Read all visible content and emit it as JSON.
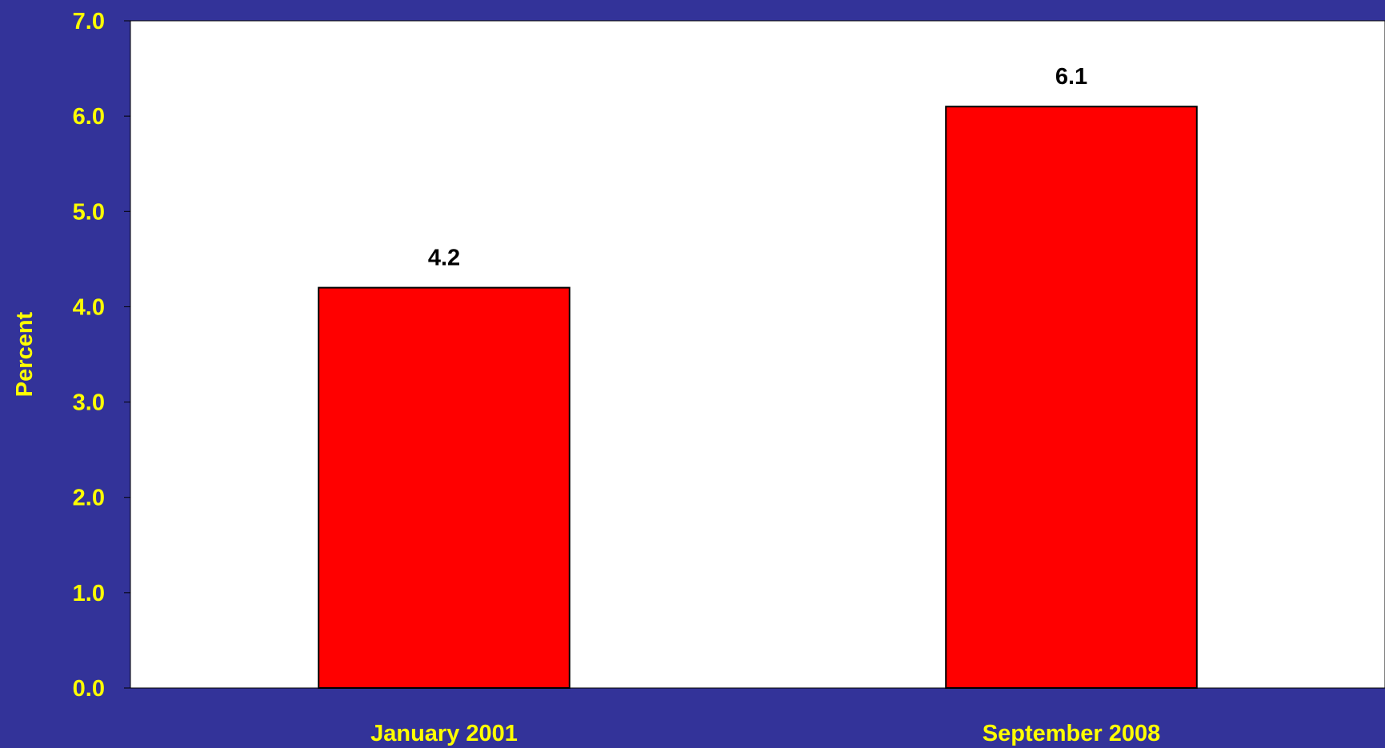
{
  "colors": {
    "background": "#333399",
    "plot_area": "#FFFFFF",
    "bar_fill": "#FF0000",
    "bar_stroke": "#000000",
    "axis_text": "#FFFF00",
    "data_label_text": "#000000"
  },
  "chart_data": {
    "type": "bar",
    "categories": [
      "January 2001",
      "September 2008"
    ],
    "values": [
      4.2,
      6.1
    ],
    "value_labels": [
      "4.2",
      "6.1"
    ],
    "title": "",
    "xlabel": "",
    "ylabel": "Percent",
    "ylim": [
      0,
      7
    ],
    "yticks": [
      0,
      1,
      2,
      3,
      4,
      5,
      6,
      7
    ],
    "ytick_labels": [
      "0.0",
      "1.0",
      "2.0",
      "3.0",
      "4.0",
      "5.0",
      "6.0",
      "7.0"
    ],
    "grid": false,
    "legend": "none"
  }
}
